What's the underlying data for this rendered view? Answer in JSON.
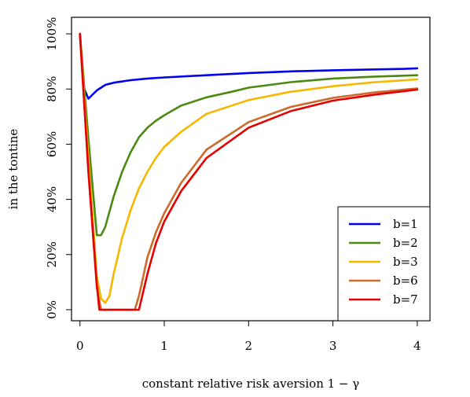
{
  "chart_data": {
    "type": "line",
    "title": "",
    "xlabel": "constant relative risk aversion 1 − γ",
    "ylabel": "in the tontine",
    "xlim": [
      -0.1,
      4.15
    ],
    "ylim": [
      -0.04,
      1.06
    ],
    "xticks": [
      0,
      1,
      2,
      3,
      4
    ],
    "xtick_labels": [
      "0",
      "1",
      "2",
      "3",
      "4"
    ],
    "yticks": [
      0,
      0.2,
      0.4,
      0.6,
      0.8,
      1.0
    ],
    "ytick_labels": [
      "0%",
      "20%",
      "40%",
      "60%",
      "80%",
      "100%"
    ],
    "grid": false,
    "legend_position": "bottom-right",
    "series": [
      {
        "name": "b=1",
        "color": "#0000ee",
        "x": [
          0,
          0.05,
          0.1,
          0.2,
          0.3,
          0.4,
          0.6,
          0.8,
          1.0,
          1.5,
          2.0,
          2.5,
          3.0,
          3.5,
          3.85,
          4.0
        ],
        "y": [
          1.0,
          0.8,
          0.765,
          0.795,
          0.815,
          0.823,
          0.832,
          0.838,
          0.842,
          0.85,
          0.858,
          0.864,
          0.868,
          0.871,
          0.873,
          0.875
        ]
      },
      {
        "name": "b=2",
        "color": "#4a8a10",
        "x": [
          0,
          0.1,
          0.2,
          0.25,
          0.3,
          0.4,
          0.5,
          0.6,
          0.7,
          0.8,
          0.9,
          1.0,
          1.2,
          1.5,
          1.8,
          2.0,
          2.5,
          3.0,
          3.5,
          4.0
        ],
        "y": [
          1.0,
          0.62,
          0.27,
          0.27,
          0.3,
          0.41,
          0.5,
          0.57,
          0.625,
          0.66,
          0.685,
          0.705,
          0.74,
          0.77,
          0.79,
          0.805,
          0.825,
          0.838,
          0.845,
          0.85
        ]
      },
      {
        "name": "b=3",
        "color": "#f5b800",
        "x": [
          0,
          0.1,
          0.2,
          0.25,
          0.3,
          0.35,
          0.4,
          0.5,
          0.6,
          0.7,
          0.8,
          0.9,
          1.0,
          1.2,
          1.5,
          2.0,
          2.5,
          3.0,
          3.5,
          4.0
        ],
        "y": [
          1.0,
          0.55,
          0.12,
          0.04,
          0.025,
          0.05,
          0.13,
          0.26,
          0.36,
          0.44,
          0.5,
          0.55,
          0.59,
          0.645,
          0.71,
          0.76,
          0.79,
          0.81,
          0.825,
          0.835
        ]
      },
      {
        "name": "b=6",
        "color": "#cd6a2a",
        "x": [
          0,
          0.1,
          0.2,
          0.25,
          0.5,
          0.65,
          0.7,
          0.8,
          0.9,
          1.0,
          1.2,
          1.5,
          2.0,
          2.5,
          3.0,
          3.5,
          4.0
        ],
        "y": [
          1.0,
          0.5,
          0.08,
          0.0,
          0.0,
          0.0,
          0.05,
          0.19,
          0.28,
          0.35,
          0.46,
          0.58,
          0.68,
          0.735,
          0.768,
          0.788,
          0.802
        ]
      },
      {
        "name": "b=7",
        "color": "#e80000",
        "x": [
          0,
          0.1,
          0.2,
          0.23,
          0.5,
          0.7,
          0.8,
          0.9,
          1.0,
          1.2,
          1.5,
          2.0,
          2.5,
          3.0,
          3.5,
          4.0
        ],
        "y": [
          1.0,
          0.5,
          0.09,
          0.0,
          0.0,
          0.0,
          0.13,
          0.24,
          0.32,
          0.43,
          0.55,
          0.66,
          0.72,
          0.758,
          0.78,
          0.798
        ]
      }
    ]
  }
}
